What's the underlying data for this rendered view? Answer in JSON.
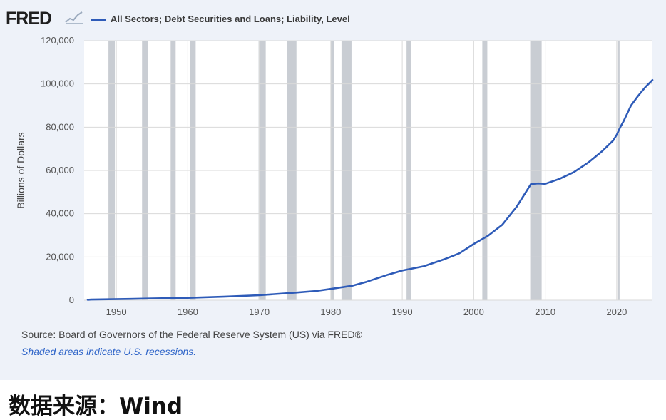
{
  "brand": {
    "logo_text": "FRED",
    "logo_icon": "fred-chart-logo-icon"
  },
  "source_text": "Source: Board of Governors of the Federal Reserve System (US) via FRED®",
  "note_text": "Shaded areas indicate U.S. recessions.",
  "caption": "数据来源：Wind",
  "colors": {
    "line": "#2e5bb8",
    "recession": "#c9cdd3",
    "panel": "#eef2f9",
    "grid": "#d9d9d9"
  },
  "chart_data": {
    "type": "line",
    "title": "",
    "xlabel": "",
    "ylabel": "Billions of Dollars",
    "xlim": [
      1945.5,
      2025.0
    ],
    "ylim": [
      0,
      120000
    ],
    "yticks": [
      0,
      20000,
      40000,
      60000,
      80000,
      100000,
      120000
    ],
    "ytick_labels": [
      "0",
      "20,000",
      "40,000",
      "60,000",
      "80,000",
      "100,000",
      "120,000"
    ],
    "xticks": [
      1950,
      1960,
      1970,
      1980,
      1990,
      2000,
      2010,
      2020
    ],
    "xtick_labels": [
      "1950",
      "1960",
      "1970",
      "1980",
      "1990",
      "2000",
      "2010",
      "2020"
    ],
    "grid": true,
    "legend": "top-left",
    "recessions": [
      [
        1948.9,
        1949.8
      ],
      [
        1953.6,
        1954.4
      ],
      [
        1957.6,
        1958.3
      ],
      [
        1960.3,
        1961.1
      ],
      [
        1969.9,
        1970.9
      ],
      [
        1973.9,
        1975.2
      ],
      [
        1980.0,
        1980.5
      ],
      [
        1981.5,
        1982.9
      ],
      [
        1990.6,
        1991.2
      ],
      [
        2001.2,
        2001.9
      ],
      [
        2007.9,
        2009.5
      ],
      [
        2020.1,
        2020.4
      ]
    ],
    "series": [
      {
        "name": "All Sectors; Debt Securities and Loans; Liability, Level",
        "x": [
          1946,
          1946.5,
          1952,
          1955,
          1960,
          1965,
          1970,
          1975,
          1978,
          1980,
          1983,
          1985,
          1988,
          1990,
          1993,
          1996,
          1998,
          2000,
          2002,
          2004,
          2006,
          2008,
          2009,
          2010,
          2012,
          2014,
          2016,
          2018,
          2019.5,
          2020,
          2020.5,
          2021,
          2022,
          2023,
          2024,
          2025
        ],
        "y": [
          200,
          300,
          600,
          800,
          1100,
          1600,
          2300,
          3500,
          4300,
          5200,
          6700,
          8500,
          11800,
          13700,
          15700,
          19100,
          21700,
          26000,
          29800,
          34900,
          43200,
          53700,
          54000,
          53800,
          56100,
          59200,
          63600,
          69000,
          73800,
          76500,
          80000,
          83000,
          90000,
          94500,
          98500,
          101800
        ]
      }
    ]
  }
}
